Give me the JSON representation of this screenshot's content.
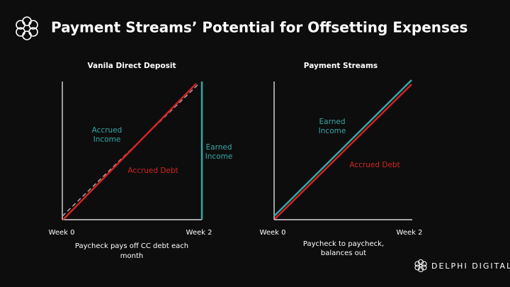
{
  "header": {
    "title": "Payment Streams’ Potential for Offsetting Expenses"
  },
  "panels": [
    {
      "title": "Vanila Direct Deposit",
      "x_start": "Week 0",
      "x_end": "Week 2",
      "labels": {
        "accrued_income": [
          "Accrued",
          "Income"
        ],
        "earned_income": [
          "Earned",
          "Income"
        ],
        "accrued_debt": [
          "Accrued Debt"
        ]
      },
      "caption": [
        "Paycheck pays off CC debt each",
        "month"
      ]
    },
    {
      "title": "Payment Streams",
      "x_start": "Week 0",
      "x_end": "Week 2",
      "labels": {
        "earned_income": [
          "Earned",
          "Income"
        ],
        "accrued_debt": [
          "Accrued Debt"
        ]
      },
      "caption": [
        "Paycheck to paycheck,",
        "balances out"
      ]
    }
  ],
  "footer": {
    "brand": "DELPHI DIGITAL"
  }
}
